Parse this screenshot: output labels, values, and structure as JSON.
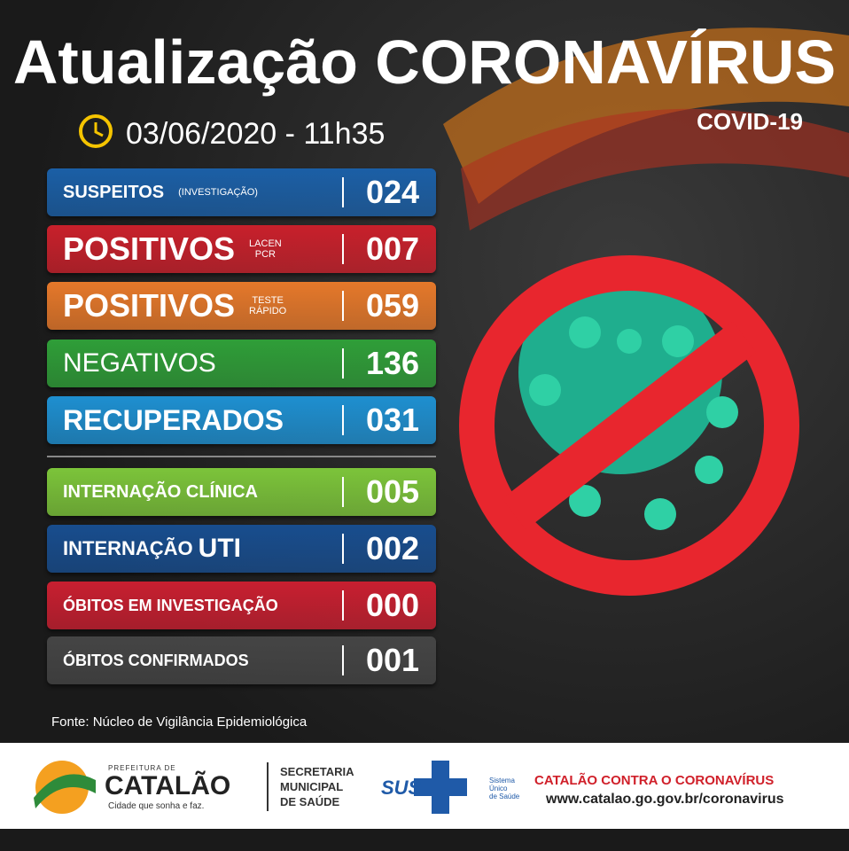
{
  "header": {
    "title": "Atualização CORONAVÍRUS",
    "subtitle": "COVID-19",
    "datetime": "03/06/2020 - 11h35"
  },
  "rows": [
    {
      "label": "SUSPEITOS",
      "qualifier": [
        "(INVESTIGAÇÃO)"
      ],
      "value": "024"
    },
    {
      "label": "POSITIVOS",
      "qualifier": [
        "LACEN",
        "PCR"
      ],
      "value": "007"
    },
    {
      "label": "POSITIVOS",
      "qualifier": [
        "TESTE",
        "RÁPIDO"
      ],
      "value": "059"
    },
    {
      "label": "NEGATIVOS",
      "value": "136"
    },
    {
      "label": "RECUPERADOS",
      "value": "031"
    },
    {
      "label": "INTERNAÇÃO CLÍNICA",
      "value": "005"
    },
    {
      "label": "INTERNAÇÃO",
      "emphasis": "UTI",
      "value": "002"
    },
    {
      "label": "ÓBITOS EM INVESTIGAÇÃO",
      "value": "000"
    },
    {
      "label": "ÓBITOS CONFIRMADOS",
      "value": "001"
    }
  ],
  "source": "Fonte: Núcleo de Vigilância Epidemiológica",
  "footer": {
    "logo": {
      "top": "PREFEITURA DE",
      "name": "CATALÃO",
      "slogan": "Cidade que sonha e faz."
    },
    "secretaria": [
      "SECRETARIA",
      "MUNICIPAL",
      "DE SAÚDE"
    ],
    "sus": {
      "name": "SUS",
      "full": [
        "Sistema",
        "Único",
        "de Saúde"
      ]
    },
    "campaign": "CATALÃO CONTRA O CORONAVÍRUS",
    "url": "www.catalao.go.gov.br/coronavirus"
  }
}
